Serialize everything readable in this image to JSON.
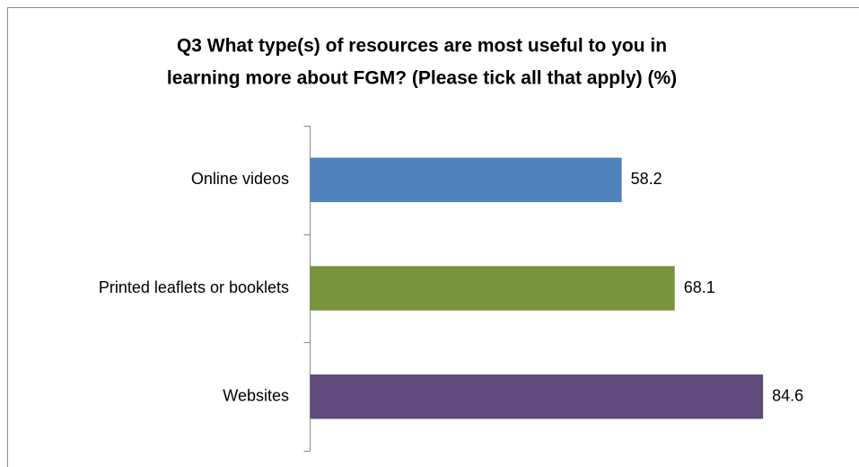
{
  "chart_data": {
    "type": "hbar",
    "title": [
      "Q3 What type(s) of resources are most useful to you in",
      "learning more about FGM? (Please tick all that apply) (%)"
    ],
    "categories": [
      "Online videos",
      "Printed leaflets or booklets",
      "Websites"
    ],
    "values": [
      58.2,
      68.1,
      84.6
    ],
    "colors": [
      "#4f81bd",
      "#77933c",
      "#604a7b"
    ],
    "xlim": [
      0,
      100
    ]
  }
}
